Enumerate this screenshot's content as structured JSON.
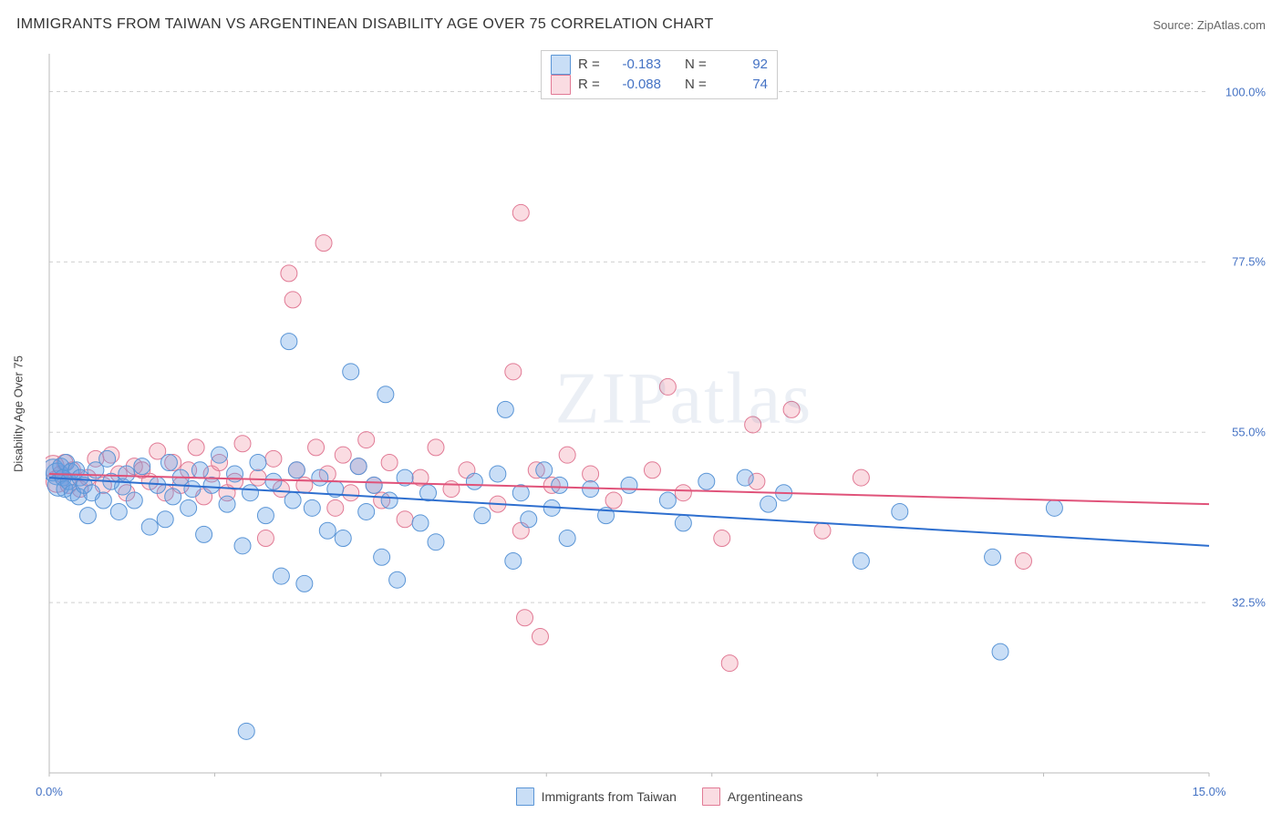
{
  "title": "IMMIGRANTS FROM TAIWAN VS ARGENTINEAN DISABILITY AGE OVER 75 CORRELATION CHART",
  "source": "Source: ZipAtlas.com",
  "watermark": "ZIPatlas",
  "yAxisLabel": "Disability Age Over 75",
  "xDomain": [
    0,
    15
  ],
  "yDomain": [
    10,
    105
  ],
  "xTickLabels": [
    {
      "x": 0,
      "label": "0.0%"
    },
    {
      "x": 15,
      "label": "15.0%"
    }
  ],
  "xMinorTicks": [
    0,
    2.14,
    4.29,
    6.43,
    8.57,
    10.71,
    12.86,
    15
  ],
  "yTicks": [
    {
      "y": 32.5,
      "label": "32.5%"
    },
    {
      "y": 55.0,
      "label": "55.0%"
    },
    {
      "y": 77.5,
      "label": "77.5%"
    },
    {
      "y": 100.0,
      "label": "100.0%"
    }
  ],
  "series": [
    {
      "key": "taiwan",
      "label": "Immigrants from Taiwan",
      "fill": "rgba(100,160,230,0.35)",
      "stroke": "#5a95d6",
      "lineColor": "#2e6fcf",
      "R": "-0.183",
      "N": "92",
      "trend": {
        "x1": 0,
        "y1": 49,
        "x2": 15,
        "y2": 40
      },
      "points": [
        [
          0.05,
          50
        ],
        [
          0.1,
          49.5
        ],
        [
          0.12,
          48
        ],
        [
          0.15,
          50.5
        ],
        [
          0.18,
          49
        ],
        [
          0.2,
          47.5
        ],
        [
          0.22,
          51
        ],
        [
          0.25,
          48.5
        ],
        [
          0.28,
          49.8
        ],
        [
          0.3,
          47
        ],
        [
          0.35,
          50
        ],
        [
          0.38,
          46.5
        ],
        [
          0.4,
          49
        ],
        [
          0.45,
          48
        ],
        [
          0.5,
          44
        ],
        [
          0.55,
          47
        ],
        [
          0.6,
          50
        ],
        [
          0.7,
          46
        ],
        [
          0.75,
          51.5
        ],
        [
          0.8,
          48.5
        ],
        [
          0.9,
          44.5
        ],
        [
          0.95,
          47.8
        ],
        [
          1.0,
          49.5
        ],
        [
          1.1,
          46
        ],
        [
          1.2,
          50.5
        ],
        [
          1.3,
          42.5
        ],
        [
          1.4,
          48
        ],
        [
          1.5,
          43.5
        ],
        [
          1.55,
          51
        ],
        [
          1.6,
          46.5
        ],
        [
          1.7,
          49
        ],
        [
          1.8,
          45
        ],
        [
          1.85,
          47.5
        ],
        [
          1.95,
          50
        ],
        [
          2.0,
          41.5
        ],
        [
          2.1,
          48
        ],
        [
          2.2,
          52
        ],
        [
          2.3,
          45.5
        ],
        [
          2.4,
          49.5
        ],
        [
          2.5,
          40
        ],
        [
          2.55,
          15.5
        ],
        [
          2.6,
          47
        ],
        [
          2.7,
          51
        ],
        [
          2.8,
          44
        ],
        [
          2.9,
          48.5
        ],
        [
          3.0,
          36
        ],
        [
          3.1,
          67
        ],
        [
          3.15,
          46
        ],
        [
          3.2,
          50
        ],
        [
          3.3,
          35
        ],
        [
          3.4,
          45
        ],
        [
          3.5,
          49
        ],
        [
          3.6,
          42
        ],
        [
          3.7,
          47.5
        ],
        [
          3.8,
          41
        ],
        [
          3.9,
          63
        ],
        [
          4.0,
          50.5
        ],
        [
          4.1,
          44.5
        ],
        [
          4.2,
          48
        ],
        [
          4.3,
          38.5
        ],
        [
          4.35,
          60
        ],
        [
          4.4,
          46
        ],
        [
          4.5,
          35.5
        ],
        [
          4.6,
          49
        ],
        [
          4.8,
          43
        ],
        [
          4.9,
          47
        ],
        [
          5.0,
          40.5
        ],
        [
          5.5,
          48.5
        ],
        [
          5.6,
          44
        ],
        [
          5.8,
          49.5
        ],
        [
          5.9,
          58
        ],
        [
          6.0,
          38
        ],
        [
          6.1,
          47
        ],
        [
          6.2,
          43.5
        ],
        [
          6.4,
          50
        ],
        [
          6.5,
          45
        ],
        [
          6.6,
          48
        ],
        [
          6.7,
          41
        ],
        [
          7.0,
          47.5
        ],
        [
          7.2,
          44
        ],
        [
          7.5,
          48
        ],
        [
          8.0,
          46
        ],
        [
          8.2,
          43
        ],
        [
          8.5,
          48.5
        ],
        [
          9.0,
          49
        ],
        [
          9.3,
          45.5
        ],
        [
          9.5,
          47
        ],
        [
          10.5,
          38
        ],
        [
          11.0,
          44.5
        ],
        [
          12.2,
          38.5
        ],
        [
          12.3,
          26
        ],
        [
          13.0,
          45
        ]
      ]
    },
    {
      "key": "argentinean",
      "label": "Argentineans",
      "fill": "rgba(240,140,160,0.30)",
      "stroke": "#e17a95",
      "lineColor": "#e0537a",
      "R": "-0.088",
      "N": "74",
      "trend": {
        "x1": 0,
        "y1": 49.5,
        "x2": 15,
        "y2": 45.5
      },
      "points": [
        [
          0.05,
          50.5
        ],
        [
          0.1,
          48.5
        ],
        [
          0.15,
          49.5
        ],
        [
          0.2,
          51
        ],
        [
          0.25,
          48
        ],
        [
          0.3,
          50
        ],
        [
          0.4,
          47.5
        ],
        [
          0.5,
          49
        ],
        [
          0.6,
          51.5
        ],
        [
          0.7,
          48
        ],
        [
          0.8,
          52
        ],
        [
          0.9,
          49.5
        ],
        [
          1.0,
          47
        ],
        [
          1.1,
          50.5
        ],
        [
          1.2,
          50
        ],
        [
          1.3,
          48.5
        ],
        [
          1.4,
          52.5
        ],
        [
          1.5,
          47
        ],
        [
          1.6,
          51
        ],
        [
          1.7,
          48
        ],
        [
          1.8,
          50
        ],
        [
          1.9,
          53
        ],
        [
          2.0,
          46.5
        ],
        [
          2.1,
          49.5
        ],
        [
          2.2,
          51
        ],
        [
          2.3,
          47
        ],
        [
          2.4,
          48.5
        ],
        [
          2.5,
          53.5
        ],
        [
          2.7,
          49
        ],
        [
          2.8,
          41
        ],
        [
          2.9,
          51.5
        ],
        [
          3.0,
          47.5
        ],
        [
          3.1,
          76
        ],
        [
          3.15,
          72.5
        ],
        [
          3.2,
          50
        ],
        [
          3.3,
          48
        ],
        [
          3.45,
          53
        ],
        [
          3.55,
          80
        ],
        [
          3.6,
          49.5
        ],
        [
          3.7,
          45
        ],
        [
          3.8,
          52
        ],
        [
          3.9,
          47
        ],
        [
          4.0,
          50.5
        ],
        [
          4.1,
          54
        ],
        [
          4.2,
          48
        ],
        [
          4.3,
          46
        ],
        [
          4.4,
          51
        ],
        [
          4.6,
          43.5
        ],
        [
          4.8,
          49
        ],
        [
          5.0,
          53
        ],
        [
          5.2,
          47.5
        ],
        [
          5.4,
          50
        ],
        [
          5.8,
          45.5
        ],
        [
          6.0,
          63
        ],
        [
          6.1,
          42
        ],
        [
          6.1,
          84
        ],
        [
          6.15,
          30.5
        ],
        [
          6.3,
          50
        ],
        [
          6.35,
          28
        ],
        [
          6.5,
          48
        ],
        [
          6.7,
          52
        ],
        [
          7.0,
          49.5
        ],
        [
          7.3,
          46
        ],
        [
          7.8,
          50
        ],
        [
          8.0,
          61
        ],
        [
          8.2,
          47
        ],
        [
          8.7,
          41
        ],
        [
          8.8,
          24.5
        ],
        [
          9.1,
          56
        ],
        [
          9.15,
          48.5
        ],
        [
          9.6,
          58
        ],
        [
          10.0,
          42
        ],
        [
          10.5,
          49
        ],
        [
          12.6,
          38
        ]
      ]
    }
  ],
  "colors": {
    "gridDash": "#d0d0d0",
    "axis": "#bbb",
    "tickText": "#4472c4",
    "titleText": "#333"
  },
  "markerRadius": 9,
  "clusterRadiusMax": 12
}
